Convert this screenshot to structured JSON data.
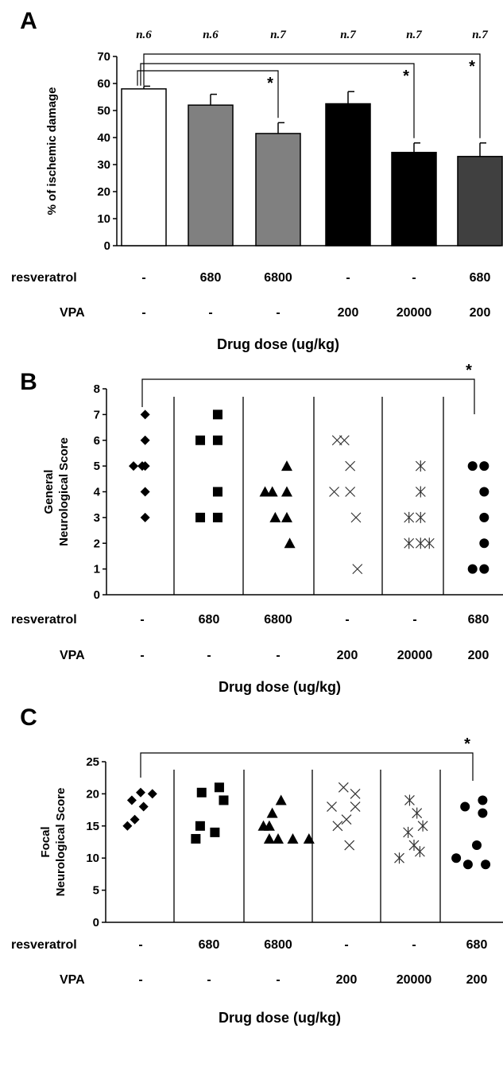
{
  "chart_data": [
    {
      "panel": "A",
      "type": "bar",
      "ylabel": "% of ischemic damage",
      "ylim": [
        0,
        70
      ],
      "yticks": [
        0,
        10,
        20,
        30,
        40,
        50,
        60,
        70
      ],
      "values": [
        58,
        52,
        41.5,
        52.5,
        34.5,
        33
      ],
      "errors": [
        1,
        4,
        4,
        4.5,
        3.5,
        5
      ],
      "bar_colors": [
        "#ffffff",
        "#808080",
        "#808080",
        "#000000",
        "#000000",
        "#404040"
      ],
      "n_labels": [
        "n.6",
        "n.6",
        "n.7",
        "n.7",
        "n.7",
        "n.7"
      ],
      "significance": [
        {
          "from": 0,
          "to": 2,
          "label": "*"
        },
        {
          "from": 0,
          "to": 4,
          "label": "*"
        },
        {
          "from": 0,
          "to": 5,
          "label": "*"
        }
      ],
      "row_labels": {
        "resveratrol": "resveratrol",
        "vpa": "VPA"
      },
      "resveratrol": [
        "-",
        "680",
        "6800",
        "-",
        "-",
        "680"
      ],
      "vpa": [
        "-",
        "-",
        "-",
        "200",
        "20000",
        "200"
      ],
      "xlabel": "Drug dose (ug/kg)"
    },
    {
      "panel": "B",
      "type": "scatter",
      "ylabel": "General Neurological Score",
      "ylim": [
        0,
        8
      ],
      "yticks": [
        0,
        1,
        2,
        3,
        4,
        5,
        6,
        7,
        8
      ],
      "series": [
        {
          "marker": "diamond",
          "points": [
            [
              -0.3,
              5
            ],
            [
              0,
              5
            ],
            [
              0.1,
              5
            ],
            [
              0.1,
              7
            ],
            [
              0.1,
              6
            ],
            [
              0.1,
              4
            ],
            [
              0.1,
              3
            ]
          ]
        },
        {
          "marker": "square",
          "points": [
            [
              -0.3,
              6
            ],
            [
              0.3,
              6
            ],
            [
              -0.3,
              3
            ],
            [
              0.3,
              3
            ],
            [
              0.3,
              7
            ],
            [
              0.3,
              4
            ]
          ]
        },
        {
          "marker": "triangle",
          "points": [
            [
              -0.45,
              4
            ],
            [
              -0.2,
              4
            ],
            [
              0.3,
              4
            ],
            [
              0.3,
              5
            ],
            [
              -0.1,
              3
            ],
            [
              0.3,
              3
            ],
            [
              0.4,
              2
            ]
          ]
        },
        {
          "marker": "x",
          "points": [
            [
              -0.35,
              6
            ],
            [
              -0.1,
              6
            ],
            [
              0.1,
              5
            ],
            [
              -0.45,
              4
            ],
            [
              0.1,
              4
            ],
            [
              0.3,
              3
            ],
            [
              0.35,
              1
            ]
          ]
        },
        {
          "marker": "asterisk",
          "points": [
            [
              0.2,
              5
            ],
            [
              0.2,
              4
            ],
            [
              -0.2,
              3
            ],
            [
              0.2,
              3
            ],
            [
              -0.2,
              2
            ],
            [
              0.2,
              2
            ],
            [
              0.5,
              2
            ]
          ]
        },
        {
          "marker": "circle",
          "points": [
            [
              -0.2,
              5
            ],
            [
              0.2,
              5
            ],
            [
              0.2,
              4
            ],
            [
              0.2,
              3
            ],
            [
              0.2,
              2
            ],
            [
              -0.2,
              1
            ],
            [
              0.2,
              1
            ]
          ]
        }
      ],
      "significance": [
        {
          "from": 0,
          "to": 5,
          "label": "*"
        }
      ],
      "row_labels": {
        "resveratrol": "resveratrol",
        "vpa": "VPA"
      },
      "resveratrol": [
        "-",
        "680",
        "6800",
        "-",
        "-",
        "680"
      ],
      "vpa": [
        "-",
        "-",
        "-",
        "200",
        "20000",
        "200"
      ],
      "xlabel": "Drug dose (ug/kg)"
    },
    {
      "panel": "C",
      "type": "scatter",
      "ylabel": "Focal Neurological Score",
      "ylim": [
        0,
        25
      ],
      "yticks": [
        0,
        5,
        10,
        15,
        20,
        25
      ],
      "series": [
        {
          "marker": "diamond",
          "points": [
            [
              -0.45,
              15
            ],
            [
              -0.2,
              16
            ],
            [
              -0.3,
              19
            ],
            [
              0.1,
              18
            ],
            [
              0,
              20.2
            ],
            [
              0.4,
              20
            ]
          ]
        },
        {
          "marker": "square",
          "points": [
            [
              -0.45,
              13
            ],
            [
              -0.3,
              15
            ],
            [
              0.2,
              14
            ],
            [
              -0.25,
              20.2
            ],
            [
              0.35,
              21
            ],
            [
              0.5,
              19
            ]
          ]
        },
        {
          "marker": "triangle",
          "points": [
            [
              -0.5,
              15
            ],
            [
              -0.3,
              15
            ],
            [
              -0.3,
              13
            ],
            [
              0,
              13
            ],
            [
              -0.2,
              17
            ],
            [
              0.1,
              19
            ],
            [
              0.5,
              13
            ],
            [
              1.05,
              13
            ]
          ]
        },
        {
          "marker": "x",
          "points": [
            [
              -0.5,
              18
            ],
            [
              -0.3,
              15
            ],
            [
              0,
              16
            ],
            [
              -0.1,
              21
            ],
            [
              0.3,
              20
            ],
            [
              0.3,
              18
            ],
            [
              0.1,
              12
            ]
          ]
        },
        {
          "marker": "asterisk",
          "points": [
            [
              -0.15,
              19
            ],
            [
              0.1,
              17
            ],
            [
              0.3,
              15
            ],
            [
              -0.2,
              14
            ],
            [
              0,
              12
            ],
            [
              0.2,
              11
            ],
            [
              -0.5,
              10
            ]
          ]
        },
        {
          "marker": "circle",
          "points": [
            [
              -0.4,
              18
            ],
            [
              0.2,
              19
            ],
            [
              0.2,
              17
            ],
            [
              0,
              12
            ],
            [
              -0.7,
              10
            ],
            [
              -0.3,
              9
            ],
            [
              0.3,
              9
            ]
          ]
        }
      ],
      "significance": [
        {
          "from": 0,
          "to": 5,
          "label": "*"
        }
      ],
      "row_labels": {
        "resveratrol": "resveratrol",
        "vpa": "VPA"
      },
      "resveratrol": [
        "-",
        "680",
        "6800",
        "-",
        "-",
        "680"
      ],
      "vpa": [
        "-",
        "-",
        "-",
        "200",
        "20000",
        "200"
      ],
      "xlabel": "Drug dose (ug/kg)"
    }
  ]
}
